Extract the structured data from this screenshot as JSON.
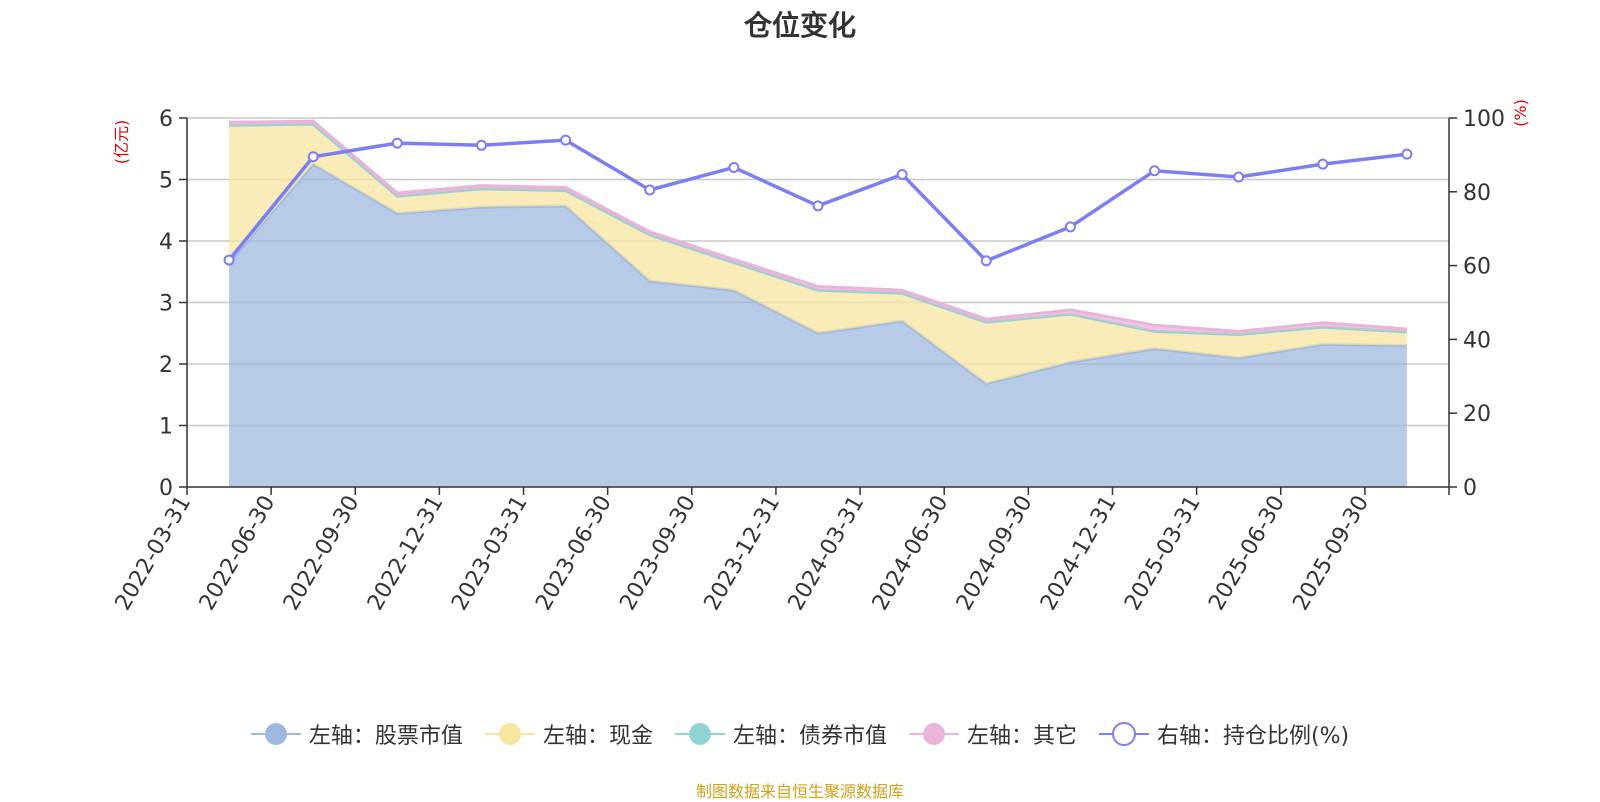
{
  "chart_data": {
    "type": "area",
    "title": "仓位变化",
    "categories": [
      "2022-03-31",
      "2022-06-30",
      "2022-09-30",
      "2022-12-31",
      "2023-03-31",
      "2023-06-30",
      "2023-09-30",
      "2023-12-31",
      "2024-03-31",
      "2024-06-30",
      "2024-09-30",
      "2024-12-31",
      "2025-03-31",
      "2025-06-30",
      "2025-09-30"
    ],
    "left_axis": {
      "unit": "(亿元)",
      "ylim": [
        0,
        6
      ],
      "ticks": [
        0,
        1,
        2,
        3,
        4,
        5,
        6
      ]
    },
    "right_axis": {
      "unit": "(%)",
      "ylim": [
        0,
        100
      ],
      "ticks": [
        0,
        20,
        40,
        60,
        80,
        100
      ]
    },
    "series": [
      {
        "name": "左轴：股票市值",
        "axis": "left",
        "kind": "stacked-area",
        "color": "#9fb8e0",
        "values": [
          3.65,
          5.25,
          4.45,
          4.55,
          4.57,
          3.35,
          3.2,
          2.5,
          2.7,
          1.68,
          2.03,
          2.25,
          2.1,
          2.32,
          2.3
        ]
      },
      {
        "name": "左轴：现金",
        "axis": "left",
        "kind": "stacked-area",
        "color": "#f7e6a0",
        "values": [
          2.23,
          0.65,
          0.28,
          0.3,
          0.25,
          0.75,
          0.45,
          0.7,
          0.45,
          1.0,
          0.78,
          0.28,
          0.38,
          0.28,
          0.22
        ]
      },
      {
        "name": "左轴：债券市值",
        "axis": "left",
        "kind": "stacked-area",
        "color": "#91d3d3",
        "values": [
          0,
          0,
          0,
          0,
          0,
          0,
          0,
          0,
          0,
          0,
          0,
          0,
          0,
          0,
          0
        ]
      },
      {
        "name": "左轴：其它",
        "axis": "left",
        "kind": "stacked-area",
        "color": "#e8b5d8",
        "values": [
          0.05,
          0.05,
          0.05,
          0.05,
          0.05,
          0.05,
          0.05,
          0.06,
          0.05,
          0.05,
          0.07,
          0.1,
          0.05,
          0.07,
          0.05
        ]
      },
      {
        "name": "右轴：持仓比例(%)",
        "axis": "right",
        "kind": "line",
        "color": "#7b7ff0",
        "values": [
          61.5,
          89.5,
          93.2,
          92.6,
          94.0,
          80.5,
          86.6,
          76.2,
          84.7,
          61.3,
          70.5,
          85.7,
          84.0,
          87.5,
          90.2
        ]
      }
    ]
  },
  "title": "仓位变化",
  "source": "制图数据来自恒生聚源数据库"
}
